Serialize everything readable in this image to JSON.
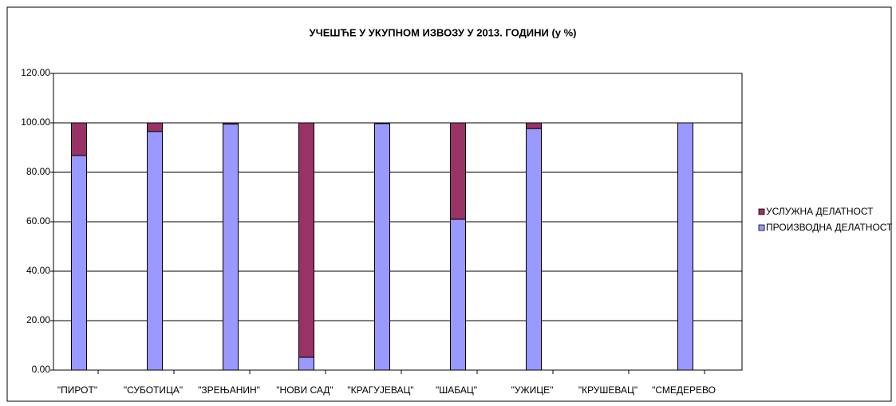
{
  "chart_data": {
    "type": "stacked_bar",
    "title": "УЧЕШЋЕ У УКУПНОМ ИЗВОЗУ У 2013. ГОДИНИ (у %)",
    "categories": [
      "\"ПИРОТ\"",
      "\"СУБОТИЦА\"",
      "\"ЗРЕЊАНИН\"",
      "\"НОВИ САД\"",
      "\"КРАГУЈЕВАЦ\"",
      "\"ШАБАЦ\"",
      "\"УЖИЦЕ\"",
      "\"КРУШЕВАЦ\"",
      "\"СМЕДЕРЕВО"
    ],
    "series": [
      {
        "name": "ПРОИЗВОДНА ДЕЛАТНОСТ",
        "color": "#9999ff",
        "values": [
          86.8,
          96.5,
          99.5,
          5.2,
          99.7,
          61.0,
          97.7,
          0,
          100
        ]
      },
      {
        "name": "УСЛУЖНА ДЕЛАТНОСТ",
        "color": "#993366",
        "values": [
          13.2,
          3.5,
          0.5,
          94.8,
          0.3,
          39.0,
          2.3,
          0,
          0
        ]
      }
    ],
    "ylim": [
      0,
      120
    ],
    "yticks": [
      {
        "value": 0,
        "label": "0.00"
      },
      {
        "value": 20,
        "label": "20.00"
      },
      {
        "value": 40,
        "label": "40.00"
      },
      {
        "value": 60,
        "label": "60.00"
      },
      {
        "value": 80,
        "label": "80.00"
      },
      {
        "value": 100,
        "label": "100.00"
      },
      {
        "value": 120,
        "label": "120.00"
      }
    ],
    "grid": true,
    "legend": "right"
  }
}
